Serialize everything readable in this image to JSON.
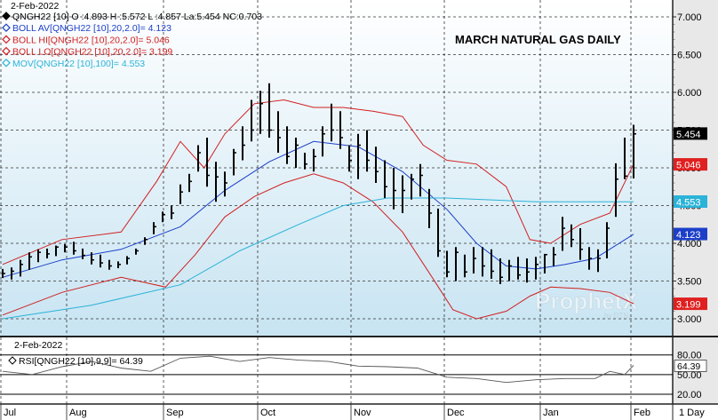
{
  "header": {
    "date": "2-Feb-2022",
    "legend": [
      {
        "text": "QNGH22 [10] O :4.893 H :5.572 L :4.857 La:5.454 NC:0.703",
        "color": "#000000",
        "marker": "diamond-filled"
      },
      {
        "text": "BOLL AV[QNGH22 [10],20,2.0]= 4.123",
        "color": "#1c3fc9",
        "marker": "diamond"
      },
      {
        "text": "BOLL HI[QNGH22 [10],20,2.0]= 5.046",
        "color": "#d02020",
        "marker": "diamond"
      },
      {
        "text": "BOLL LO[QNGH22 [10],20,2.0]= 3.199",
        "color": "#d02020",
        "marker": "diamond"
      },
      {
        "text": "MOV[QNGH22 [10],100]= 4.553",
        "color": "#2bb3d8",
        "marker": "diamond"
      }
    ]
  },
  "watermark": {
    "text": "ProphetX",
    "sub": "by DTN"
  },
  "chart_data": [
    {
      "type": "ohlc",
      "title": "MARCH NATURAL GAS DAILY",
      "symbol": "QNGH22 [10]",
      "last": {
        "open": 4.893,
        "high": 5.572,
        "low": 4.857,
        "last": 5.454,
        "net_change": 0.703
      },
      "y_ticks": [
        "3.000",
        "3.500",
        "4.000",
        "4.500",
        "5.000",
        "5.500",
        "6.000",
        "6.500",
        "7.000"
      ],
      "ylim": [
        2.8,
        7.2
      ],
      "x_labels": [
        "Jul",
        "Aug",
        "Sep",
        "Oct",
        "Nov",
        "Dec",
        "Jan",
        "Feb"
      ],
      "right_axis_labels": [
        {
          "text": "5.454",
          "value": 5.454,
          "bg": "#000000",
          "fg": "#ffffff"
        },
        {
          "text": "5.046",
          "value": 5.046,
          "bg": "#e02020",
          "fg": "#ffffff"
        },
        {
          "text": "4.553",
          "value": 4.553,
          "bg": "#2bb3d8",
          "fg": "#ffffff"
        },
        {
          "text": "4.123",
          "value": 4.123,
          "bg": "#1c3fc9",
          "fg": "#ffffff"
        },
        {
          "text": "3.199",
          "value": 3.199,
          "bg": "#e02020",
          "fg": "#ffffff"
        }
      ],
      "series": [
        {
          "name": "QNGH22 [10]",
          "kind": "ohlc",
          "color": "#000000",
          "x": [
            0,
            3,
            6,
            9,
            12,
            15,
            18,
            21,
            24,
            27,
            30,
            33,
            36,
            39,
            42,
            45,
            48,
            51,
            54,
            57,
            60,
            63,
            66,
            69,
            72,
            75,
            78,
            81,
            84,
            87,
            90,
            93,
            96,
            99,
            102,
            105,
            108,
            111,
            114,
            117,
            120,
            123,
            126,
            129,
            132,
            135,
            138,
            141,
            144,
            147,
            150,
            153,
            156,
            159,
            162,
            165,
            168,
            171,
            174,
            177,
            180,
            183,
            186,
            189,
            192,
            195,
            198,
            201,
            204,
            207,
            210,
            213
          ],
          "high": [
            3.66,
            3.68,
            3.78,
            3.88,
            3.92,
            3.93,
            3.97,
            3.99,
            4.02,
            3.93,
            3.88,
            3.85,
            3.78,
            3.76,
            3.83,
            3.93,
            4.08,
            4.28,
            4.42,
            4.5,
            4.78,
            4.92,
            5.3,
            5.4,
            5.08,
            4.95,
            5.25,
            5.55,
            5.9,
            6.02,
            6.12,
            5.75,
            5.55,
            5.4,
            5.2,
            5.25,
            5.55,
            5.85,
            5.75,
            5.3,
            5.45,
            5.5,
            5.28,
            5.1,
            5.0,
            4.9,
            4.92,
            5.05,
            4.72,
            4.46,
            3.9,
            3.95,
            3.85,
            3.95,
            3.95,
            3.92,
            3.8,
            3.78,
            3.82,
            3.8,
            3.82,
            3.86,
            3.95,
            4.35,
            4.25,
            4.2,
            3.95,
            3.92,
            4.28,
            5.06,
            5.4,
            5.57
          ],
          "low": [
            3.54,
            3.52,
            3.56,
            3.65,
            3.75,
            3.8,
            3.83,
            3.88,
            3.85,
            3.79,
            3.72,
            3.68,
            3.65,
            3.67,
            3.72,
            3.85,
            3.98,
            4.12,
            4.28,
            4.32,
            4.52,
            4.68,
            4.95,
            4.75,
            4.55,
            4.62,
            4.9,
            5.1,
            5.35,
            5.45,
            5.4,
            5.2,
            5.05,
            5.0,
            4.98,
            4.95,
            5.15,
            5.35,
            5.25,
            4.95,
            4.85,
            4.95,
            4.8,
            4.6,
            4.45,
            4.4,
            4.58,
            4.62,
            4.2,
            3.82,
            3.55,
            3.5,
            3.55,
            3.6,
            3.56,
            3.53,
            3.46,
            3.5,
            3.52,
            3.48,
            3.52,
            3.6,
            3.7,
            3.9,
            3.95,
            3.78,
            3.65,
            3.62,
            3.8,
            4.35,
            4.85,
            4.86
          ],
          "close": [
            3.6,
            3.63,
            3.72,
            3.82,
            3.88,
            3.86,
            3.95,
            3.95,
            3.9,
            3.84,
            3.78,
            3.74,
            3.7,
            3.72,
            3.8,
            3.9,
            4.05,
            4.22,
            4.38,
            4.4,
            4.68,
            4.82,
            5.2,
            4.9,
            4.88,
            4.8,
            5.2,
            5.3,
            5.5,
            5.85,
            5.5,
            5.4,
            5.15,
            5.3,
            5.05,
            5.15,
            5.45,
            5.5,
            5.4,
            5.1,
            5.3,
            5.1,
            4.95,
            4.75,
            4.7,
            4.7,
            4.85,
            4.9,
            4.4,
            3.9,
            3.62,
            3.88,
            3.62,
            3.8,
            3.7,
            3.63,
            3.55,
            3.7,
            3.58,
            3.62,
            3.72,
            3.85,
            3.85,
            4.2,
            4.05,
            3.92,
            3.8,
            3.8,
            4.2,
            4.85,
            4.89,
            5.45
          ]
        },
        {
          "name": "BOLL AV",
          "kind": "line",
          "color": "#1c3fc9",
          "x": [
            0,
            20,
            40,
            60,
            75,
            90,
            105,
            120,
            135,
            150,
            160,
            170,
            180,
            190,
            200,
            213
          ],
          "y": [
            3.55,
            3.78,
            3.92,
            4.22,
            4.7,
            5.08,
            5.35,
            5.28,
            4.95,
            4.45,
            4.0,
            3.7,
            3.66,
            3.72,
            3.8,
            4.12
          ]
        },
        {
          "name": "BOLL HI",
          "kind": "line",
          "color": "#d02020",
          "x": [
            0,
            20,
            40,
            52,
            60,
            68,
            75,
            85,
            95,
            105,
            115,
            125,
            135,
            142,
            150,
            160,
            170,
            178,
            185,
            195,
            205,
            213
          ],
          "y": [
            3.72,
            4.05,
            4.15,
            4.82,
            5.35,
            5.0,
            5.45,
            5.85,
            5.9,
            5.8,
            5.8,
            5.75,
            5.68,
            5.3,
            5.1,
            5.05,
            4.75,
            4.05,
            4.0,
            4.25,
            4.4,
            5.05
          ]
        },
        {
          "name": "BOLL LO",
          "kind": "line",
          "color": "#d02020",
          "x": [
            0,
            20,
            40,
            55,
            65,
            75,
            85,
            95,
            105,
            115,
            125,
            135,
            145,
            152,
            160,
            170,
            178,
            185,
            195,
            205,
            213
          ],
          "y": [
            3.05,
            3.35,
            3.55,
            3.42,
            3.85,
            4.35,
            4.62,
            4.8,
            4.92,
            4.8,
            4.55,
            4.15,
            3.55,
            3.12,
            3.0,
            3.1,
            3.3,
            3.42,
            3.4,
            3.35,
            3.2
          ]
        },
        {
          "name": "MOV",
          "kind": "line",
          "color": "#2bb3d8",
          "x": [
            0,
            30,
            60,
            80,
            100,
            115,
            130,
            150,
            180,
            213
          ],
          "y": [
            3.0,
            3.18,
            3.45,
            3.9,
            4.25,
            4.5,
            4.6,
            4.6,
            4.55,
            4.55
          ]
        }
      ]
    },
    {
      "type": "line",
      "date": "2-Feb-2022",
      "label": "RSI[QNGH22 [10],9,9]= 64.39",
      "y_ticks": [
        "20.00",
        "50.00",
        "80.00"
      ],
      "ylim": [
        5,
        100
      ],
      "last_label": "64.39",
      "series": [
        {
          "name": "RSI[QNGH22 [10],9,9]",
          "color": "#555555",
          "x": [
            0,
            10,
            20,
            30,
            40,
            50,
            60,
            70,
            80,
            90,
            100,
            110,
            120,
            130,
            140,
            150,
            160,
            170,
            180,
            190,
            200,
            205,
            210,
            213
          ],
          "y": [
            55,
            50,
            62,
            70,
            60,
            55,
            75,
            78,
            70,
            76,
            72,
            70,
            63,
            62,
            60,
            46,
            44,
            38,
            42,
            44,
            44,
            55,
            50,
            64
          ]
        }
      ],
      "x_labels": [
        "Jul",
        "Aug",
        "Sep",
        "Oct",
        "Nov",
        "Dec",
        "Jan",
        "Feb"
      ],
      "interval": "1 Day"
    }
  ]
}
